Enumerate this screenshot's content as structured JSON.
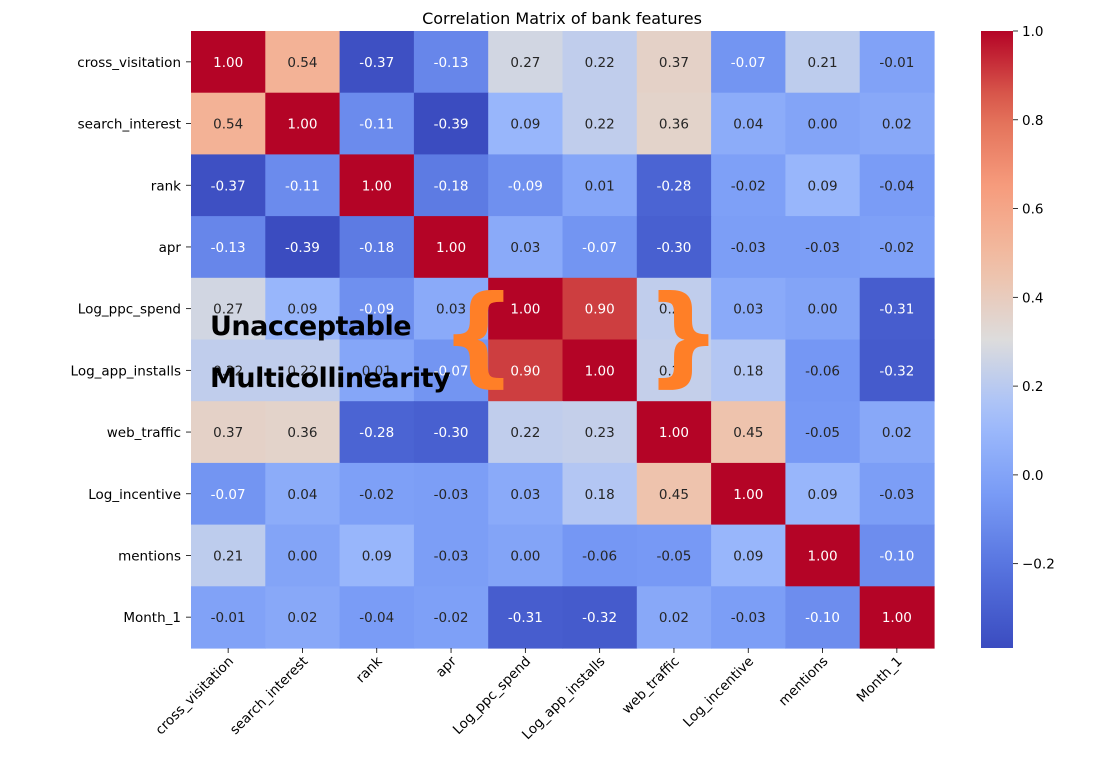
{
  "chart_data": {
    "type": "heatmap",
    "title": "Correlation Matrix of bank features",
    "colormap": "coolwarm",
    "labels": [
      "cross_visitation",
      "search_interest",
      "rank",
      "apr",
      "Log_ppc_spend",
      "Log_app_installs",
      "web_traffic",
      "Log_incentive",
      "mentions",
      "Month_1"
    ],
    "matrix": [
      [
        1.0,
        0.54,
        -0.37,
        -0.13,
        0.27,
        0.22,
        0.37,
        -0.07,
        0.21,
        -0.01
      ],
      [
        0.54,
        1.0,
        -0.11,
        -0.39,
        0.09,
        0.22,
        0.36,
        0.04,
        -0.0,
        0.02
      ],
      [
        -0.37,
        -0.11,
        1.0,
        -0.18,
        -0.09,
        0.01,
        -0.28,
        -0.02,
        0.09,
        -0.04
      ],
      [
        -0.13,
        -0.39,
        -0.18,
        1.0,
        0.03,
        -0.07,
        -0.3,
        -0.03,
        -0.03,
        -0.02
      ],
      [
        0.27,
        0.09,
        -0.09,
        0.03,
        1.0,
        0.9,
        0.22,
        0.03,
        -0.0,
        -0.31
      ],
      [
        0.22,
        0.22,
        0.01,
        -0.07,
        0.9,
        1.0,
        0.23,
        0.18,
        -0.06,
        -0.32
      ],
      [
        0.37,
        0.36,
        -0.28,
        -0.3,
        0.22,
        0.23,
        1.0,
        0.45,
        -0.05,
        0.02
      ],
      [
        -0.07,
        0.04,
        -0.02,
        -0.03,
        0.03,
        0.18,
        0.45,
        1.0,
        0.09,
        -0.03
      ],
      [
        0.21,
        -0.0,
        0.09,
        -0.03,
        -0.0,
        -0.06,
        -0.05,
        0.09,
        1.0,
        -0.1
      ],
      [
        -0.01,
        0.02,
        -0.04,
        -0.02,
        -0.31,
        -0.32,
        0.02,
        -0.03,
        -0.1,
        1.0
      ]
    ],
    "value_range": [
      -0.39,
      1.0
    ],
    "colorbar_ticks": [
      1.0,
      0.8,
      0.6,
      0.4,
      0.2,
      0.0,
      -0.2
    ],
    "colorbar_tick_labels": [
      "1.0",
      "0.8",
      "0.6",
      "0.4",
      "0.2",
      "0.0",
      "−0.2"
    ],
    "grid": false
  },
  "annotation": {
    "line1": "Unacceptable",
    "line2": "Multicollinearity",
    "left_brace": "{",
    "right_brace": "}",
    "brace_color": "#ff7f27"
  }
}
